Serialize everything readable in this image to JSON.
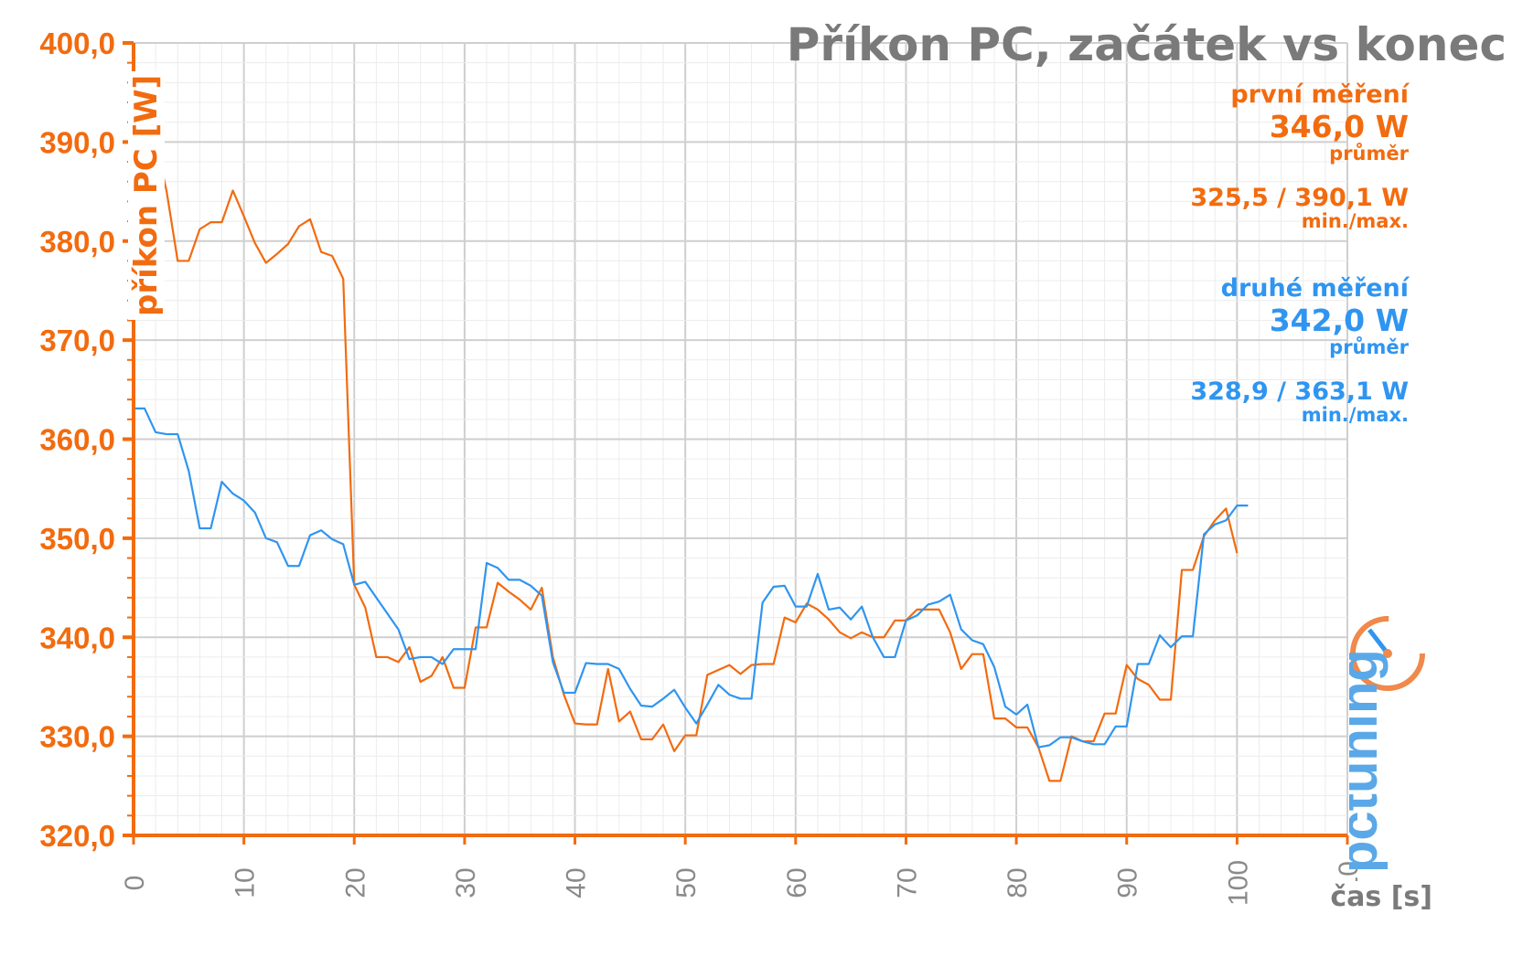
{
  "title": "Příkon PC, začátek vs konec",
  "stats": {
    "first": {
      "label": "první měření",
      "avg": "346,0 W",
      "avg_caption": "průměr",
      "minmax": "325,5 / 390,1 W",
      "minmax_caption": "min./max."
    },
    "second": {
      "label": "druhé měření",
      "avg": "342,0 W",
      "avg_caption": "průměr",
      "minmax": "328,9 / 363,1 W",
      "minmax_caption": "min./max."
    }
  },
  "logo_text": "pctuning",
  "colors": {
    "first": "#f26b0f",
    "second": "#2f95f0",
    "grid": "#dcdcdc",
    "axis_text": "#f26b0f",
    "x_tick_text": "#8a8a8a"
  },
  "chart_data": {
    "type": "line",
    "title": "Příkon PC, začátek vs konec",
    "xlabel": "čas [s]",
    "ylabel": "příkon PC [W]",
    "xlim": [
      0,
      110
    ],
    "ylim": [
      320,
      400
    ],
    "x_ticks": [
      0,
      10,
      20,
      30,
      40,
      50,
      60,
      70,
      80,
      90,
      100,
      110
    ],
    "y_ticks": [
      "320,0",
      "330,0",
      "340,0",
      "350,0",
      "360,0",
      "370,0",
      "380,0",
      "390,0",
      "400,0"
    ],
    "y_tick_values": [
      320,
      330,
      340,
      350,
      360,
      370,
      380,
      390,
      400
    ],
    "grid": true,
    "series": [
      {
        "name": "první měření",
        "color": "#f26b0f",
        "values": [
          386.8,
          388,
          390.1,
          385,
          378,
          378,
          381.2,
          381.9,
          381.9,
          385.1,
          382.5,
          379.8,
          377.8,
          378.7,
          379.7,
          381.5,
          382.2,
          378.9,
          378.5,
          376.2,
          345.3,
          343,
          338,
          338,
          337.5,
          339,
          335.5,
          336.1,
          338,
          334.9,
          334.9,
          341,
          341,
          345.5,
          344.6,
          343.8,
          342.8,
          345,
          338,
          334.2,
          331.3,
          331.2,
          331.2,
          336.8,
          331.5,
          332.5,
          329.7,
          329.7,
          331.2,
          328.5,
          330.1,
          330.1,
          336.2,
          336.7,
          337.2,
          336.3,
          337.2,
          337.3,
          337.3,
          342,
          341.5,
          343.4,
          342.8,
          341.8,
          340.5,
          339.9,
          340.5,
          340,
          340,
          341.7,
          341.7,
          342.8,
          342.8,
          342.8,
          340.5,
          336.8,
          338.3,
          338.3,
          331.8,
          331.8,
          330.9,
          330.9,
          328.9,
          325.5,
          325.5,
          330,
          329.5,
          329.5,
          332.3,
          332.3,
          337.2,
          335.8,
          335.2,
          333.7,
          333.7,
          346.8,
          346.8,
          350.2,
          351.8,
          353,
          348.5
        ]
      },
      {
        "name": "druhé měření",
        "color": "#2f95f0",
        "values": [
          363.1,
          363.1,
          360.7,
          360.5,
          360.5,
          356.8,
          351,
          351,
          355.7,
          354.5,
          353.8,
          352.6,
          350,
          349.6,
          347.2,
          347.2,
          350.3,
          350.8,
          349.9,
          349.4,
          345.3,
          345.6,
          344,
          342.4,
          340.8,
          337.8,
          338,
          338,
          337.3,
          338.8,
          338.8,
          338.8,
          347.5,
          347,
          345.8,
          345.8,
          345.2,
          344.2,
          337.5,
          334.4,
          334.4,
          337.4,
          337.3,
          337.3,
          336.8,
          334.8,
          333.1,
          333,
          333.8,
          334.7,
          332.9,
          331.3,
          333.2,
          335.2,
          334.2,
          333.8,
          333.8,
          343.5,
          345.1,
          345.2,
          343.1,
          343.1,
          346.4,
          342.8,
          343,
          341.8,
          343.1,
          340,
          338,
          338,
          341.7,
          342.2,
          343.3,
          343.6,
          344.3,
          340.8,
          339.7,
          339.3,
          337,
          333,
          332.2,
          333.2,
          328.9,
          329.1,
          329.9,
          329.9,
          329.5,
          329.2,
          329.2,
          331,
          331,
          337.3,
          337.3,
          340.2,
          339,
          340.1,
          340.1,
          350.4,
          351.4,
          351.8,
          353.3,
          353.3
        ]
      }
    ]
  }
}
